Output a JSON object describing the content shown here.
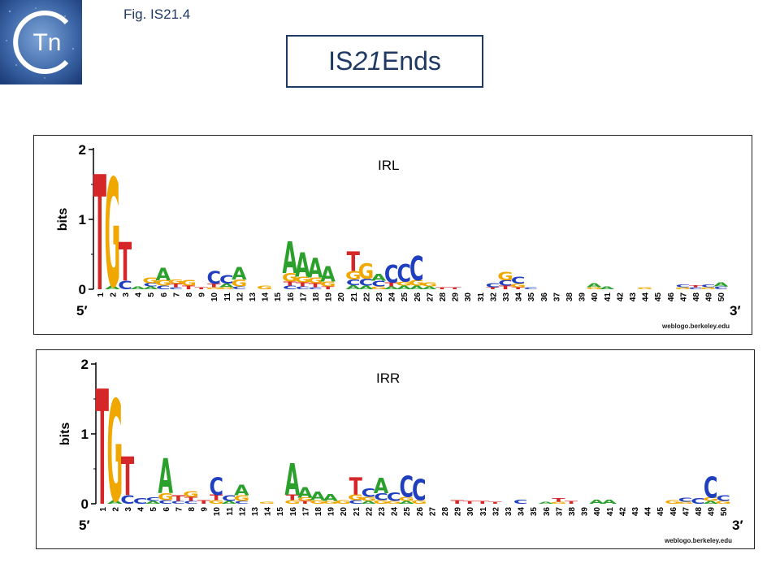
{
  "header": {
    "fig_label": "Fig. IS21.4",
    "title_prefix": "IS",
    "title_italic": "21",
    "title_suffix": " Ends",
    "logo_text": "Tn"
  },
  "colors": {
    "A": "#2ca02c",
    "C": "#1f3fbf",
    "G": "#f0a800",
    "T": "#d62728",
    "frame": "#1f3864"
  },
  "panels": [
    {
      "label": "IRL",
      "y_axis_label": "bits",
      "y_ticks": [
        "0",
        "1",
        "2"
      ],
      "end5": "5′",
      "end3": "3′",
      "credit": "weblogo.berkeley.edu",
      "positions": [
        [
          [
            "T",
            1.65
          ]
        ],
        [
          [
            "G",
            1.55
          ],
          [
            "A",
            0.05
          ]
        ],
        [
          [
            "T",
            0.55
          ],
          [
            "C",
            0.12
          ]
        ],
        [
          [
            "A",
            0.04
          ]
        ],
        [
          [
            "G",
            0.08
          ],
          [
            "C",
            0.05
          ],
          [
            "A",
            0.04
          ]
        ],
        [
          [
            "A",
            0.18
          ],
          [
            "G",
            0.08
          ],
          [
            "C",
            0.05
          ]
        ],
        [
          [
            "G",
            0.06
          ],
          [
            "T",
            0.05
          ],
          [
            "C",
            0.03
          ]
        ],
        [
          [
            "G",
            0.08
          ],
          [
            "T",
            0.05
          ]
        ],
        [
          [
            "T",
            0.03
          ]
        ],
        [
          [
            "C",
            0.18
          ],
          [
            "T",
            0.05
          ],
          [
            "G",
            0.03
          ]
        ],
        [
          [
            "C",
            0.12
          ],
          [
            "A",
            0.05
          ],
          [
            "G",
            0.03
          ]
        ],
        [
          [
            "A",
            0.18
          ],
          [
            "G",
            0.1
          ],
          [
            "C",
            0.04
          ]
        ],
        [],
        [
          [
            "G",
            0.05
          ]
        ],
        [],
        [
          [
            "A",
            0.45
          ],
          [
            "G",
            0.12
          ],
          [
            "T",
            0.06
          ],
          [
            "C",
            0.05
          ]
        ],
        [
          [
            "A",
            0.35
          ],
          [
            "G",
            0.08
          ],
          [
            "T",
            0.06
          ],
          [
            "C",
            0.04
          ]
        ],
        [
          [
            "A",
            0.28
          ],
          [
            "G",
            0.08
          ],
          [
            "T",
            0.06
          ],
          [
            "C",
            0.03
          ]
        ],
        [
          [
            "A",
            0.22
          ],
          [
            "G",
            0.07
          ],
          [
            "T",
            0.04
          ]
        ],
        [],
        [
          [
            "T",
            0.28
          ],
          [
            "G",
            0.12
          ],
          [
            "C",
            0.08
          ],
          [
            "A",
            0.06
          ]
        ],
        [
          [
            "G",
            0.22
          ],
          [
            "C",
            0.1
          ],
          [
            "A",
            0.05
          ]
        ],
        [
          [
            "A",
            0.1
          ],
          [
            "C",
            0.08
          ],
          [
            "G",
            0.04
          ]
        ],
        [
          [
            "C",
            0.25
          ],
          [
            "T",
            0.06
          ],
          [
            "A",
            0.04
          ]
        ],
        [
          [
            "C",
            0.25
          ],
          [
            "G",
            0.06
          ],
          [
            "A",
            0.05
          ]
        ],
        [
          [
            "C",
            0.35
          ],
          [
            "G",
            0.08
          ],
          [
            "A",
            0.05
          ]
        ],
        [
          [
            "G",
            0.06
          ],
          [
            "A",
            0.04
          ]
        ],
        [
          [
            "T",
            0.03
          ]
        ],
        [
          [
            "T",
            0.03
          ]
        ],
        [],
        [],
        [
          [
            "C",
            0.06
          ],
          [
            "T",
            0.03
          ]
        ],
        [
          [
            "G",
            0.12
          ],
          [
            "C",
            0.08
          ],
          [
            "T",
            0.05
          ]
        ],
        [
          [
            "C",
            0.1
          ],
          [
            "G",
            0.05
          ],
          [
            "T",
            0.03
          ]
        ],
        [
          [
            "C",
            0.03
          ]
        ],
        [],
        [],
        [],
        [],
        [
          [
            "A",
            0.06
          ],
          [
            "G",
            0.03
          ]
        ],
        [
          [
            "A",
            0.04
          ]
        ],
        [],
        [],
        [
          [
            "G",
            0.03
          ]
        ],
        [],
        [],
        [
          [
            "C",
            0.04
          ],
          [
            "G",
            0.03
          ]
        ],
        [
          [
            "C",
            0.03
          ],
          [
            "T",
            0.03
          ]
        ],
        [
          [
            "C",
            0.04
          ],
          [
            "G",
            0.03
          ]
        ],
        [
          [
            "A",
            0.06
          ],
          [
            "C",
            0.04
          ]
        ]
      ]
    },
    {
      "label": "IRR",
      "y_axis_label": "bits",
      "y_ticks": [
        "0",
        "1",
        "2"
      ],
      "end5": "5′",
      "end3": "3′",
      "credit": "weblogo.berkeley.edu",
      "positions": [
        [
          [
            "T",
            1.65
          ]
        ],
        [
          [
            "G",
            1.45
          ],
          [
            "A",
            0.05
          ]
        ],
        [
          [
            "T",
            0.55
          ],
          [
            "C",
            0.12
          ]
        ],
        [
          [
            "C",
            0.08
          ]
        ],
        [
          [
            "C",
            0.05
          ],
          [
            "A",
            0.04
          ]
        ],
        [
          [
            "A",
            0.5
          ],
          [
            "G",
            0.1
          ],
          [
            "C",
            0.05
          ]
        ],
        [
          [
            "T",
            0.08
          ],
          [
            "C",
            0.04
          ]
        ],
        [
          [
            "G",
            0.08
          ],
          [
            "T",
            0.06
          ],
          [
            "C",
            0.04
          ]
        ],
        [
          [
            "T",
            0.05
          ]
        ],
        [
          [
            "C",
            0.25
          ],
          [
            "T",
            0.08
          ],
          [
            "G",
            0.05
          ]
        ],
        [
          [
            "C",
            0.08
          ],
          [
            "A",
            0.04
          ]
        ],
        [
          [
            "A",
            0.15
          ],
          [
            "G",
            0.08
          ],
          [
            "C",
            0.04
          ]
        ],
        [],
        [
          [
            "G",
            0.03
          ]
        ],
        [],
        [
          [
            "A",
            0.45
          ],
          [
            "T",
            0.08
          ],
          [
            "G",
            0.05
          ]
        ],
        [
          [
            "A",
            0.15
          ],
          [
            "G",
            0.05
          ],
          [
            "T",
            0.04
          ]
        ],
        [
          [
            "A",
            0.12
          ],
          [
            "G",
            0.05
          ]
        ],
        [
          [
            "A",
            0.1
          ],
          [
            "G",
            0.04
          ]
        ],
        [
          [
            "G",
            0.05
          ]
        ],
        [
          [
            "T",
            0.25
          ],
          [
            "G",
            0.08
          ],
          [
            "C",
            0.05
          ]
        ],
        [
          [
            "C",
            0.12
          ],
          [
            "G",
            0.06
          ],
          [
            "A",
            0.04
          ]
        ],
        [
          [
            "A",
            0.22
          ],
          [
            "C",
            0.1
          ],
          [
            "G",
            0.05
          ]
        ],
        [
          [
            "C",
            0.12
          ],
          [
            "G",
            0.04
          ]
        ],
        [
          [
            "C",
            0.3
          ],
          [
            "G",
            0.06
          ],
          [
            "A",
            0.04
          ]
        ],
        [
          [
            "C",
            0.3
          ],
          [
            "G",
            0.05
          ]
        ],
        [],
        [],
        [
          [
            "T",
            0.05
          ]
        ],
        [
          [
            "T",
            0.04
          ]
        ],
        [
          [
            "T",
            0.04
          ]
        ],
        [
          [
            "T",
            0.03
          ]
        ],
        [],
        [
          [
            "C",
            0.06
          ]
        ],
        [],
        [
          [
            "A",
            0.03
          ]
        ],
        [
          [
            "T",
            0.05
          ],
          [
            "G",
            0.03
          ]
        ],
        [
          [
            "T",
            0.04
          ]
        ],
        [],
        [
          [
            "A",
            0.06
          ]
        ],
        [
          [
            "A",
            0.06
          ]
        ],
        [],
        [],
        [],
        [],
        [
          [
            "G",
            0.05
          ]
        ],
        [
          [
            "C",
            0.06
          ],
          [
            "G",
            0.03
          ]
        ],
        [
          [
            "C",
            0.08
          ]
        ],
        [
          [
            "C",
            0.3
          ],
          [
            "G",
            0.05
          ],
          [
            "A",
            0.04
          ]
        ],
        [
          [
            "C",
            0.08
          ],
          [
            "G",
            0.04
          ]
        ]
      ]
    }
  ]
}
